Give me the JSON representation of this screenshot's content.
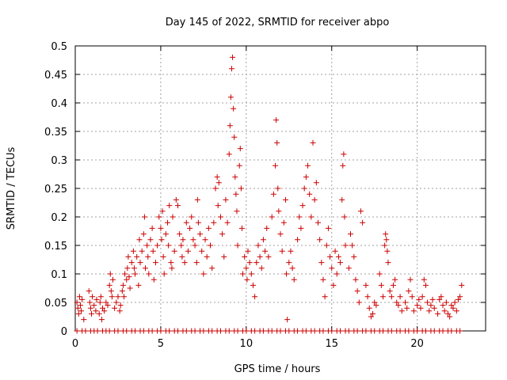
{
  "chart_data": {
    "type": "scatter",
    "title": "Day 145 of 2022, SRMTID for receiver abpo",
    "xlabel": "GPS time / hours",
    "ylabel": "SRMTID / TECUs",
    "xlim": [
      0,
      24
    ],
    "ylim": [
      0,
      0.5
    ],
    "xticks": [
      0,
      5,
      10,
      15,
      20
    ],
    "yticks": [
      0,
      0.05,
      0.1,
      0.15,
      0.2,
      0.25,
      0.3,
      0.35,
      0.4,
      0.45,
      0.5
    ],
    "grid": true,
    "marker": "plus",
    "color": "#cc0000",
    "series": [
      {
        "name": "SRMTID",
        "points": [
          [
            0.1,
            0.05
          ],
          [
            0.15,
            0.04
          ],
          [
            0.2,
            0.03
          ],
          [
            0.25,
            0.06
          ],
          [
            0.3,
            0.045
          ],
          [
            0.35,
            0.035
          ],
          [
            0.4,
            0.055
          ],
          [
            0.5,
            0.02
          ],
          [
            0.8,
            0.07
          ],
          [
            0.85,
            0.05
          ],
          [
            0.9,
            0.04
          ],
          [
            0.95,
            0.03
          ],
          [
            1.0,
            0.06
          ],
          [
            1.1,
            0.045
          ],
          [
            1.2,
            0.035
          ],
          [
            1.25,
            0.055
          ],
          [
            1.4,
            0.03
          ],
          [
            1.45,
            0.05
          ],
          [
            1.5,
            0.06
          ],
          [
            1.55,
            0.02
          ],
          [
            1.6,
            0.04
          ],
          [
            1.7,
            0.035
          ],
          [
            1.8,
            0.05
          ],
          [
            1.9,
            0.045
          ],
          [
            2.0,
            0.08
          ],
          [
            2.05,
            0.1
          ],
          [
            2.1,
            0.07
          ],
          [
            2.15,
            0.06
          ],
          [
            2.2,
            0.09
          ],
          [
            2.3,
            0.04
          ],
          [
            2.4,
            0.05
          ],
          [
            2.5,
            0.06
          ],
          [
            2.6,
            0.035
          ],
          [
            2.65,
            0.045
          ],
          [
            2.75,
            0.07
          ],
          [
            2.8,
            0.08
          ],
          [
            2.85,
            0.06
          ],
          [
            2.9,
            0.1
          ],
          [
            3.0,
            0.09
          ],
          [
            3.05,
            0.11
          ],
          [
            3.1,
            0.13
          ],
          [
            3.15,
            0.095
          ],
          [
            3.2,
            0.075
          ],
          [
            3.3,
            0.12
          ],
          [
            3.4,
            0.14
          ],
          [
            3.45,
            0.11
          ],
          [
            3.5,
            0.1
          ],
          [
            3.6,
            0.13
          ],
          [
            3.7,
            0.08
          ],
          [
            3.75,
            0.16
          ],
          [
            3.8,
            0.12
          ],
          [
            3.9,
            0.14
          ],
          [
            4.0,
            0.17
          ],
          [
            4.05,
            0.2
          ],
          [
            4.1,
            0.11
          ],
          [
            4.2,
            0.15
          ],
          [
            4.25,
            0.13
          ],
          [
            4.3,
            0.1
          ],
          [
            4.4,
            0.16
          ],
          [
            4.5,
            0.18
          ],
          [
            4.55,
            0.14
          ],
          [
            4.6,
            0.09
          ],
          [
            4.7,
            0.12
          ],
          [
            4.8,
            0.15
          ],
          [
            4.9,
            0.2
          ],
          [
            5.0,
            0.18
          ],
          [
            5.05,
            0.16
          ],
          [
            5.1,
            0.21
          ],
          [
            5.15,
            0.13
          ],
          [
            5.2,
            0.1
          ],
          [
            5.3,
            0.17
          ],
          [
            5.4,
            0.19
          ],
          [
            5.45,
            0.15
          ],
          [
            5.5,
            0.22
          ],
          [
            5.6,
            0.12
          ],
          [
            5.65,
            0.11
          ],
          [
            5.7,
            0.2
          ],
          [
            5.8,
            0.14
          ],
          [
            5.9,
            0.23
          ],
          [
            6.0,
            0.22
          ],
          [
            6.1,
            0.17
          ],
          [
            6.2,
            0.15
          ],
          [
            6.25,
            0.13
          ],
          [
            6.3,
            0.16
          ],
          [
            6.4,
            0.12
          ],
          [
            6.5,
            0.19
          ],
          [
            6.6,
            0.14
          ],
          [
            6.7,
            0.18
          ],
          [
            6.8,
            0.2
          ],
          [
            6.9,
            0.16
          ],
          [
            7.0,
            0.15
          ],
          [
            7.1,
            0.12
          ],
          [
            7.15,
            0.23
          ],
          [
            7.2,
            0.19
          ],
          [
            7.3,
            0.17
          ],
          [
            7.4,
            0.14
          ],
          [
            7.5,
            0.1
          ],
          [
            7.6,
            0.16
          ],
          [
            7.7,
            0.13
          ],
          [
            7.8,
            0.18
          ],
          [
            7.9,
            0.15
          ],
          [
            8.0,
            0.11
          ],
          [
            8.1,
            0.19
          ],
          [
            8.2,
            0.25
          ],
          [
            8.3,
            0.27
          ],
          [
            8.35,
            0.22
          ],
          [
            8.4,
            0.26
          ],
          [
            8.5,
            0.2
          ],
          [
            8.6,
            0.17
          ],
          [
            8.7,
            0.13
          ],
          [
            8.8,
            0.23
          ],
          [
            8.9,
            0.19
          ],
          [
            9.0,
            0.31
          ],
          [
            9.05,
            0.36
          ],
          [
            9.1,
            0.41
          ],
          [
            9.15,
            0.46
          ],
          [
            9.2,
            0.48
          ],
          [
            9.25,
            0.39
          ],
          [
            9.3,
            0.34
          ],
          [
            9.35,
            0.27
          ],
          [
            9.4,
            0.24
          ],
          [
            9.45,
            0.21
          ],
          [
            9.5,
            0.15
          ],
          [
            9.6,
            0.29
          ],
          [
            9.65,
            0.32
          ],
          [
            9.7,
            0.25
          ],
          [
            9.75,
            0.18
          ],
          [
            9.8,
            0.1
          ],
          [
            9.9,
            0.13
          ],
          [
            10.0,
            0.11
          ],
          [
            10.05,
            0.09
          ],
          [
            10.1,
            0.14
          ],
          [
            10.2,
            0.12
          ],
          [
            10.3,
            0.1
          ],
          [
            10.4,
            0.08
          ],
          [
            10.5,
            0.06
          ],
          [
            10.6,
            0.12
          ],
          [
            10.7,
            0.15
          ],
          [
            10.8,
            0.13
          ],
          [
            10.9,
            0.11
          ],
          [
            11.0,
            0.16
          ],
          [
            11.1,
            0.14
          ],
          [
            11.2,
            0.18
          ],
          [
            11.3,
            0.13
          ],
          [
            11.5,
            0.2
          ],
          [
            11.6,
            0.24
          ],
          [
            11.7,
            0.29
          ],
          [
            11.75,
            0.37
          ],
          [
            11.8,
            0.33
          ],
          [
            11.85,
            0.25
          ],
          [
            11.9,
            0.21
          ],
          [
            12.0,
            0.17
          ],
          [
            12.1,
            0.14
          ],
          [
            12.2,
            0.19
          ],
          [
            12.3,
            0.23
          ],
          [
            12.35,
            0.1
          ],
          [
            12.4,
            0.02
          ],
          [
            12.5,
            0.12
          ],
          [
            12.6,
            0.14
          ],
          [
            12.7,
            0.11
          ],
          [
            12.8,
            0.09
          ],
          [
            13.0,
            0.16
          ],
          [
            13.1,
            0.2
          ],
          [
            13.2,
            0.18
          ],
          [
            13.3,
            0.22
          ],
          [
            13.4,
            0.25
          ],
          [
            13.5,
            0.27
          ],
          [
            13.6,
            0.29
          ],
          [
            13.7,
            0.24
          ],
          [
            13.8,
            0.2
          ],
          [
            13.9,
            0.33
          ],
          [
            14.0,
            0.23
          ],
          [
            14.1,
            0.26
          ],
          [
            14.2,
            0.19
          ],
          [
            14.3,
            0.16
          ],
          [
            14.4,
            0.12
          ],
          [
            14.5,
            0.09
          ],
          [
            14.6,
            0.06
          ],
          [
            14.7,
            0.15
          ],
          [
            14.8,
            0.18
          ],
          [
            14.9,
            0.13
          ],
          [
            15.0,
            0.11
          ],
          [
            15.1,
            0.08
          ],
          [
            15.2,
            0.14
          ],
          [
            15.3,
            0.1
          ],
          [
            15.4,
            0.13
          ],
          [
            15.5,
            0.12
          ],
          [
            15.6,
            0.23
          ],
          [
            15.65,
            0.29
          ],
          [
            15.7,
            0.31
          ],
          [
            15.75,
            0.2
          ],
          [
            15.8,
            0.15
          ],
          [
            16.0,
            0.11
          ],
          [
            16.1,
            0.17
          ],
          [
            16.2,
            0.15
          ],
          [
            16.3,
            0.13
          ],
          [
            16.4,
            0.09
          ],
          [
            16.5,
            0.07
          ],
          [
            16.6,
            0.05
          ],
          [
            16.7,
            0.21
          ],
          [
            16.8,
            0.19
          ],
          [
            17.0,
            0.08
          ],
          [
            17.1,
            0.06
          ],
          [
            17.2,
            0.04
          ],
          [
            17.3,
            0.025
          ],
          [
            17.4,
            0.03
          ],
          [
            17.5,
            0.05
          ],
          [
            17.6,
            0.045
          ],
          [
            17.8,
            0.1
          ],
          [
            17.9,
            0.08
          ],
          [
            18.0,
            0.06
          ],
          [
            18.1,
            0.15
          ],
          [
            18.15,
            0.17
          ],
          [
            18.2,
            0.16
          ],
          [
            18.25,
            0.14
          ],
          [
            18.3,
            0.12
          ],
          [
            18.4,
            0.07
          ],
          [
            18.5,
            0.06
          ],
          [
            18.6,
            0.08
          ],
          [
            18.7,
            0.09
          ],
          [
            18.8,
            0.05
          ],
          [
            18.9,
            0.045
          ],
          [
            19.0,
            0.06
          ],
          [
            19.1,
            0.035
          ],
          [
            19.3,
            0.05
          ],
          [
            19.4,
            0.04
          ],
          [
            19.5,
            0.07
          ],
          [
            19.6,
            0.09
          ],
          [
            19.7,
            0.06
          ],
          [
            19.8,
            0.035
          ],
          [
            20.0,
            0.045
          ],
          [
            20.1,
            0.055
          ],
          [
            20.2,
            0.04
          ],
          [
            20.3,
            0.06
          ],
          [
            20.4,
            0.09
          ],
          [
            20.5,
            0.08
          ],
          [
            20.6,
            0.05
          ],
          [
            20.7,
            0.035
          ],
          [
            20.8,
            0.045
          ],
          [
            20.9,
            0.055
          ],
          [
            21.0,
            0.04
          ],
          [
            21.2,
            0.03
          ],
          [
            21.3,
            0.055
          ],
          [
            21.4,
            0.06
          ],
          [
            21.5,
            0.045
          ],
          [
            21.6,
            0.035
          ],
          [
            21.7,
            0.05
          ],
          [
            21.8,
            0.03
          ],
          [
            21.9,
            0.025
          ],
          [
            22.0,
            0.045
          ],
          [
            22.1,
            0.04
          ],
          [
            22.2,
            0.05
          ],
          [
            22.3,
            0.035
          ],
          [
            22.4,
            0.055
          ],
          [
            22.5,
            0.06
          ],
          [
            22.6,
            0.08
          ]
        ]
      }
    ],
    "zero_band": {
      "note": "row of markers along y = 0 across the full time range",
      "x": [
        0.1,
        0.4,
        0.6,
        0.9,
        1.1,
        1.3,
        1.6,
        1.8,
        2.0,
        2.3,
        2.5,
        2.8,
        3.0,
        3.3,
        3.5,
        3.8,
        4.0,
        4.3,
        4.5,
        4.8,
        5.0,
        5.3,
        5.5,
        5.8,
        6.0,
        6.3,
        6.5,
        6.8,
        7.0,
        7.3,
        7.5,
        7.8,
        8.0,
        8.3,
        8.5,
        8.8,
        9.0,
        9.3,
        9.5,
        9.8,
        10.0,
        10.3,
        10.5,
        10.8,
        11.0,
        11.3,
        11.5,
        11.8,
        12.0,
        12.3,
        12.5,
        12.8,
        13.0,
        13.3,
        13.5,
        13.8,
        14.0,
        14.3,
        14.5,
        14.8,
        15.0,
        15.3,
        15.5,
        15.8,
        16.0,
        16.3,
        16.5,
        16.8,
        17.0,
        17.3,
        17.5,
        17.8,
        18.0,
        18.3,
        18.5,
        18.8,
        19.0,
        19.3,
        19.5,
        19.8,
        20.0,
        20.3,
        20.5,
        20.8,
        21.0,
        21.3,
        21.5,
        21.8,
        22.0,
        22.3,
        22.5
      ],
      "y": 0
    }
  }
}
